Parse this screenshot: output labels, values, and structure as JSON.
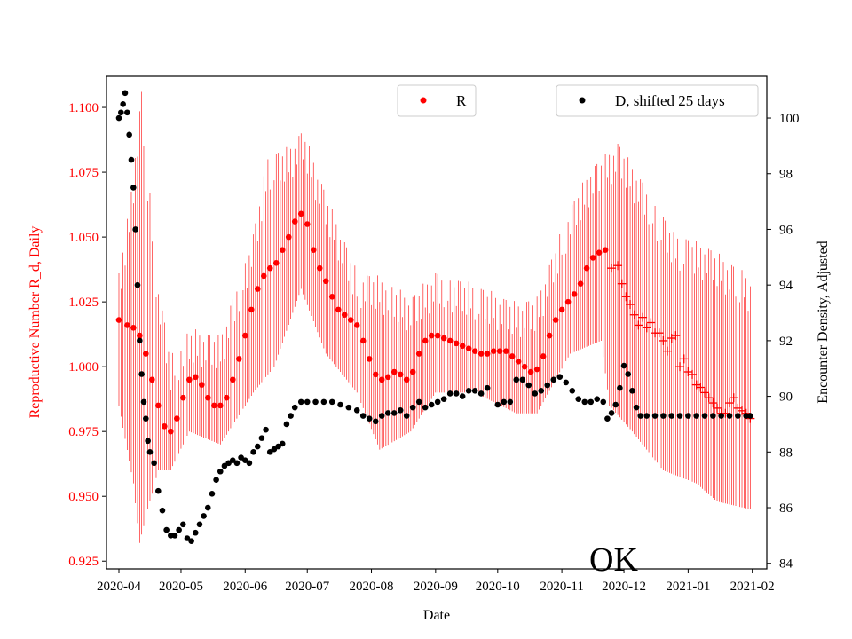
{
  "chart_data": {
    "type": "scatter",
    "title": "",
    "xlabel": "Date",
    "ylabel_left": "Reproductive Number R_d, Daily",
    "ylabel_right": "Encounter Density, Adjusted",
    "annotation": "OK",
    "colors": {
      "left": "#ff0000",
      "right": "#000000"
    },
    "x_axis": {
      "range": [
        "2020-03-26",
        "2021-02-08"
      ],
      "ticks": [
        "2020-04",
        "2020-05",
        "2020-06",
        "2020-07",
        "2020-08",
        "2020-09",
        "2020-10",
        "2020-11",
        "2020-12",
        "2021-01",
        "2021-02"
      ]
    },
    "y_left": {
      "range": [
        0.922,
        1.112
      ],
      "ticks": [
        "0.925",
        "0.950",
        "0.975",
        "1.000",
        "1.025",
        "1.050",
        "1.075",
        "1.100"
      ]
    },
    "y_right": {
      "range": [
        83.8,
        101.5
      ],
      "ticks": [
        "84",
        "86",
        "88",
        "90",
        "92",
        "94",
        "96",
        "98",
        "100"
      ]
    },
    "legend_r": "R",
    "legend_d": "D, shifted 25 days",
    "r_series": {
      "name": "R",
      "marker": "dot",
      "points": [
        [
          "2020-04-01",
          1.018
        ],
        [
          "2020-04-05",
          1.016
        ],
        [
          "2020-04-08",
          1.015
        ],
        [
          "2020-04-11",
          1.012
        ],
        [
          "2020-04-14",
          1.005
        ],
        [
          "2020-04-17",
          0.995
        ],
        [
          "2020-04-20",
          0.985
        ],
        [
          "2020-04-23",
          0.977
        ],
        [
          "2020-04-26",
          0.975
        ],
        [
          "2020-04-29",
          0.98
        ],
        [
          "2020-05-02",
          0.988
        ],
        [
          "2020-05-05",
          0.995
        ],
        [
          "2020-05-08",
          0.996
        ],
        [
          "2020-05-11",
          0.993
        ],
        [
          "2020-05-14",
          0.988
        ],
        [
          "2020-05-17",
          0.985
        ],
        [
          "2020-05-20",
          0.985
        ],
        [
          "2020-05-23",
          0.988
        ],
        [
          "2020-05-26",
          0.995
        ],
        [
          "2020-05-29",
          1.003
        ],
        [
          "2020-06-01",
          1.012
        ],
        [
          "2020-06-04",
          1.022
        ],
        [
          "2020-06-07",
          1.03
        ],
        [
          "2020-06-10",
          1.035
        ],
        [
          "2020-06-13",
          1.038
        ],
        [
          "2020-06-16",
          1.04
        ],
        [
          "2020-06-19",
          1.045
        ],
        [
          "2020-06-22",
          1.05
        ],
        [
          "2020-06-25",
          1.056
        ],
        [
          "2020-06-28",
          1.059
        ],
        [
          "2020-07-01",
          1.055
        ],
        [
          "2020-07-04",
          1.045
        ],
        [
          "2020-07-07",
          1.038
        ],
        [
          "2020-07-10",
          1.033
        ],
        [
          "2020-07-13",
          1.027
        ],
        [
          "2020-07-16",
          1.022
        ],
        [
          "2020-07-19",
          1.02
        ],
        [
          "2020-07-22",
          1.018
        ],
        [
          "2020-07-25",
          1.016
        ],
        [
          "2020-07-28",
          1.01
        ],
        [
          "2020-07-31",
          1.003
        ],
        [
          "2020-08-03",
          0.997
        ],
        [
          "2020-08-06",
          0.995
        ],
        [
          "2020-08-09",
          0.996
        ],
        [
          "2020-08-12",
          0.998
        ],
        [
          "2020-08-15",
          0.997
        ],
        [
          "2020-08-18",
          0.995
        ],
        [
          "2020-08-21",
          0.998
        ],
        [
          "2020-08-24",
          1.005
        ],
        [
          "2020-08-27",
          1.01
        ],
        [
          "2020-08-30",
          1.012
        ],
        [
          "2020-09-02",
          1.012
        ],
        [
          "2020-09-05",
          1.011
        ],
        [
          "2020-09-08",
          1.01
        ],
        [
          "2020-09-11",
          1.009
        ],
        [
          "2020-09-14",
          1.008
        ],
        [
          "2020-09-17",
          1.007
        ],
        [
          "2020-09-20",
          1.006
        ],
        [
          "2020-09-23",
          1.005
        ],
        [
          "2020-09-26",
          1.005
        ],
        [
          "2020-09-29",
          1.006
        ],
        [
          "2020-10-02",
          1.006
        ],
        [
          "2020-10-05",
          1.006
        ],
        [
          "2020-10-08",
          1.004
        ],
        [
          "2020-10-11",
          1.002
        ],
        [
          "2020-10-14",
          1.0
        ],
        [
          "2020-10-17",
          0.998
        ],
        [
          "2020-10-20",
          0.999
        ],
        [
          "2020-10-23",
          1.004
        ],
        [
          "2020-10-26",
          1.012
        ],
        [
          "2020-10-29",
          1.018
        ],
        [
          "2020-11-01",
          1.022
        ],
        [
          "2020-11-04",
          1.025
        ],
        [
          "2020-11-07",
          1.028
        ],
        [
          "2020-11-10",
          1.032
        ],
        [
          "2020-11-13",
          1.038
        ],
        [
          "2020-11-16",
          1.042
        ],
        [
          "2020-11-19",
          1.044
        ],
        [
          "2020-11-22",
          1.045
        ]
      ]
    },
    "r_plus_series": {
      "name": "R (crosses)",
      "marker": "plus",
      "points": [
        [
          "2020-11-25",
          1.038
        ],
        [
          "2020-11-28",
          1.039
        ],
        [
          "2020-11-30",
          1.032
        ],
        [
          "2020-12-02",
          1.027
        ],
        [
          "2020-12-04",
          1.024
        ],
        [
          "2020-12-06",
          1.02
        ],
        [
          "2020-12-08",
          1.016
        ],
        [
          "2020-12-10",
          1.019
        ],
        [
          "2020-12-12",
          1.015
        ],
        [
          "2020-12-14",
          1.017
        ],
        [
          "2020-12-16",
          1.013
        ],
        [
          "2020-12-18",
          1.013
        ],
        [
          "2020-12-20",
          1.01
        ],
        [
          "2020-12-22",
          1.006
        ],
        [
          "2020-12-24",
          1.011
        ],
        [
          "2020-12-26",
          1.012
        ],
        [
          "2020-12-28",
          1.0
        ],
        [
          "2020-12-30",
          1.003
        ],
        [
          "2021-01-01",
          0.998
        ],
        [
          "2021-01-03",
          0.997
        ],
        [
          "2021-01-05",
          0.993
        ],
        [
          "2021-01-07",
          0.992
        ],
        [
          "2021-01-09",
          0.99
        ],
        [
          "2021-01-11",
          0.988
        ],
        [
          "2021-01-13",
          0.986
        ],
        [
          "2021-01-15",
          0.984
        ],
        [
          "2021-01-17",
          0.982
        ],
        [
          "2021-01-19",
          0.982
        ],
        [
          "2021-01-21",
          0.986
        ],
        [
          "2021-01-23",
          0.988
        ],
        [
          "2021-01-25",
          0.984
        ],
        [
          "2021-01-27",
          0.983
        ],
        [
          "2021-01-29",
          0.982
        ],
        [
          "2021-01-31",
          0.98
        ]
      ]
    },
    "r_error_bars": {
      "lower": [
        [
          "2020-04-01",
          0.985
        ],
        [
          "2020-04-08",
          0.955
        ],
        [
          "2020-04-11",
          0.932
        ],
        [
          "2020-04-15",
          0.945
        ],
        [
          "2020-04-20",
          0.96
        ],
        [
          "2020-04-26",
          0.96
        ],
        [
          "2020-05-05",
          0.975
        ],
        [
          "2020-05-20",
          0.97
        ],
        [
          "2020-06-05",
          0.99
        ],
        [
          "2020-06-15",
          1.0
        ],
        [
          "2020-06-28",
          1.03
        ],
        [
          "2020-07-10",
          1.005
        ],
        [
          "2020-07-25",
          0.99
        ],
        [
          "2020-08-05",
          0.968
        ],
        [
          "2020-08-20",
          0.975
        ],
        [
          "2020-09-01",
          0.99
        ],
        [
          "2020-09-20",
          0.99
        ],
        [
          "2020-10-10",
          0.982
        ],
        [
          "2020-10-20",
          0.982
        ],
        [
          "2020-11-05",
          1.005
        ],
        [
          "2020-11-20",
          1.01
        ],
        [
          "2020-11-24",
          0.985
        ],
        [
          "2020-12-05",
          0.975
        ],
        [
          "2020-12-20",
          0.96
        ],
        [
          "2021-01-05",
          0.955
        ],
        [
          "2021-01-15",
          0.948
        ],
        [
          "2021-01-31",
          0.945
        ]
      ],
      "upper": [
        [
          "2020-04-01",
          1.03
        ],
        [
          "2020-04-06",
          1.055
        ],
        [
          "2020-04-08",
          1.07
        ],
        [
          "2020-04-12",
          1.1
        ],
        [
          "2020-04-16",
          1.06
        ],
        [
          "2020-04-20",
          1.025
        ],
        [
          "2020-04-26",
          0.997
        ],
        [
          "2020-05-05",
          1.008
        ],
        [
          "2020-05-20",
          1.005
        ],
        [
          "2020-06-05",
          1.045
        ],
        [
          "2020-06-12",
          1.075
        ],
        [
          "2020-06-22",
          1.078
        ],
        [
          "2020-06-29",
          1.085
        ],
        [
          "2020-07-10",
          1.06
        ],
        [
          "2020-07-25",
          1.03
        ],
        [
          "2020-08-05",
          1.028
        ],
        [
          "2020-08-20",
          1.02
        ],
        [
          "2020-09-01",
          1.03
        ],
        [
          "2020-09-20",
          1.025
        ],
        [
          "2020-10-10",
          1.018
        ],
        [
          "2020-10-20",
          1.02
        ],
        [
          "2020-11-05",
          1.055
        ],
        [
          "2020-11-15",
          1.07
        ],
        [
          "2020-11-22",
          1.075
        ],
        [
          "2020-11-28",
          1.08
        ],
        [
          "2020-12-10",
          1.065
        ],
        [
          "2020-12-25",
          1.045
        ],
        [
          "2021-01-10",
          1.04
        ],
        [
          "2021-01-31",
          1.028
        ]
      ]
    },
    "d_series": {
      "name": "D, shifted 25 days",
      "marker": "dot",
      "points": [
        [
          "2020-04-01",
          100.0
        ],
        [
          "2020-04-02",
          100.2
        ],
        [
          "2020-04-03",
          100.5
        ],
        [
          "2020-04-04",
          100.9
        ],
        [
          "2020-04-05",
          100.2
        ],
        [
          "2020-04-06",
          99.4
        ],
        [
          "2020-04-07",
          98.5
        ],
        [
          "2020-04-08",
          97.5
        ],
        [
          "2020-04-09",
          96.0
        ],
        [
          "2020-04-10",
          94.0
        ],
        [
          "2020-04-11",
          92.0
        ],
        [
          "2020-04-12",
          90.8
        ],
        [
          "2020-04-13",
          89.8
        ],
        [
          "2020-04-14",
          89.2
        ],
        [
          "2020-04-15",
          88.4
        ],
        [
          "2020-04-16",
          88.0
        ],
        [
          "2020-04-18",
          87.6
        ],
        [
          "2020-04-20",
          86.6
        ],
        [
          "2020-04-22",
          85.9
        ],
        [
          "2020-04-24",
          85.2
        ],
        [
          "2020-04-26",
          85.0
        ],
        [
          "2020-04-28",
          85.0
        ],
        [
          "2020-04-30",
          85.2
        ],
        [
          "2020-05-02",
          85.4
        ],
        [
          "2020-05-04",
          84.9
        ],
        [
          "2020-05-06",
          84.8
        ],
        [
          "2020-05-08",
          85.1
        ],
        [
          "2020-05-10",
          85.4
        ],
        [
          "2020-05-12",
          85.7
        ],
        [
          "2020-05-14",
          86.0
        ],
        [
          "2020-05-16",
          86.5
        ],
        [
          "2020-05-18",
          87.0
        ],
        [
          "2020-05-20",
          87.3
        ],
        [
          "2020-05-22",
          87.5
        ],
        [
          "2020-05-24",
          87.6
        ],
        [
          "2020-05-26",
          87.7
        ],
        [
          "2020-05-28",
          87.6
        ],
        [
          "2020-05-30",
          87.8
        ],
        [
          "2020-06-01",
          87.7
        ],
        [
          "2020-06-03",
          87.6
        ],
        [
          "2020-06-05",
          88.0
        ],
        [
          "2020-06-07",
          88.2
        ],
        [
          "2020-06-09",
          88.5
        ],
        [
          "2020-06-11",
          88.8
        ],
        [
          "2020-06-13",
          88.0
        ],
        [
          "2020-06-15",
          88.1
        ],
        [
          "2020-06-17",
          88.2
        ],
        [
          "2020-06-19",
          88.3
        ],
        [
          "2020-06-21",
          89.0
        ],
        [
          "2020-06-23",
          89.3
        ],
        [
          "2020-06-25",
          89.6
        ],
        [
          "2020-06-28",
          89.8
        ],
        [
          "2020-07-01",
          89.8
        ],
        [
          "2020-07-05",
          89.8
        ],
        [
          "2020-07-09",
          89.8
        ],
        [
          "2020-07-13",
          89.8
        ],
        [
          "2020-07-17",
          89.7
        ],
        [
          "2020-07-21",
          89.6
        ],
        [
          "2020-07-25",
          89.5
        ],
        [
          "2020-07-28",
          89.3
        ],
        [
          "2020-07-31",
          89.2
        ],
        [
          "2020-08-03",
          89.1
        ],
        [
          "2020-08-06",
          89.3
        ],
        [
          "2020-08-09",
          89.4
        ],
        [
          "2020-08-12",
          89.4
        ],
        [
          "2020-08-15",
          89.5
        ],
        [
          "2020-08-18",
          89.3
        ],
        [
          "2020-08-21",
          89.6
        ],
        [
          "2020-08-24",
          89.8
        ],
        [
          "2020-08-27",
          89.6
        ],
        [
          "2020-08-30",
          89.7
        ],
        [
          "2020-09-02",
          89.8
        ],
        [
          "2020-09-05",
          89.9
        ],
        [
          "2020-09-08",
          90.1
        ],
        [
          "2020-09-11",
          90.1
        ],
        [
          "2020-09-14",
          90.0
        ],
        [
          "2020-09-17",
          90.2
        ],
        [
          "2020-09-20",
          90.2
        ],
        [
          "2020-09-23",
          90.1
        ],
        [
          "2020-09-26",
          90.3
        ],
        [
          "2020-10-01",
          89.7
        ],
        [
          "2020-10-04",
          89.8
        ],
        [
          "2020-10-07",
          89.8
        ],
        [
          "2020-10-10",
          90.6
        ],
        [
          "2020-10-13",
          90.6
        ],
        [
          "2020-10-16",
          90.4
        ],
        [
          "2020-10-19",
          90.1
        ],
        [
          "2020-10-22",
          90.2
        ],
        [
          "2020-10-25",
          90.4
        ],
        [
          "2020-10-28",
          90.6
        ],
        [
          "2020-10-31",
          90.7
        ],
        [
          "2020-11-03",
          90.5
        ],
        [
          "2020-11-06",
          90.2
        ],
        [
          "2020-11-09",
          89.9
        ],
        [
          "2020-11-12",
          89.8
        ],
        [
          "2020-11-15",
          89.8
        ],
        [
          "2020-11-18",
          89.9
        ],
        [
          "2020-11-21",
          89.8
        ],
        [
          "2020-11-23",
          89.2
        ],
        [
          "2020-11-25",
          89.4
        ],
        [
          "2020-11-27",
          89.7
        ],
        [
          "2020-11-29",
          90.3
        ],
        [
          "2020-12-01",
          91.1
        ],
        [
          "2020-12-03",
          90.8
        ],
        [
          "2020-12-05",
          90.2
        ],
        [
          "2020-12-07",
          89.6
        ],
        [
          "2020-12-09",
          89.3
        ],
        [
          "2020-12-12",
          89.3
        ],
        [
          "2020-12-16",
          89.3
        ],
        [
          "2020-12-20",
          89.3
        ],
        [
          "2020-12-24",
          89.3
        ],
        [
          "2020-12-28",
          89.3
        ],
        [
          "2021-01-01",
          89.3
        ],
        [
          "2021-01-05",
          89.3
        ],
        [
          "2021-01-09",
          89.3
        ],
        [
          "2021-01-13",
          89.3
        ],
        [
          "2021-01-17",
          89.3
        ],
        [
          "2021-01-21",
          89.3
        ],
        [
          "2021-01-25",
          89.3
        ],
        [
          "2021-01-29",
          89.3
        ],
        [
          "2021-01-31",
          89.3
        ]
      ]
    }
  }
}
